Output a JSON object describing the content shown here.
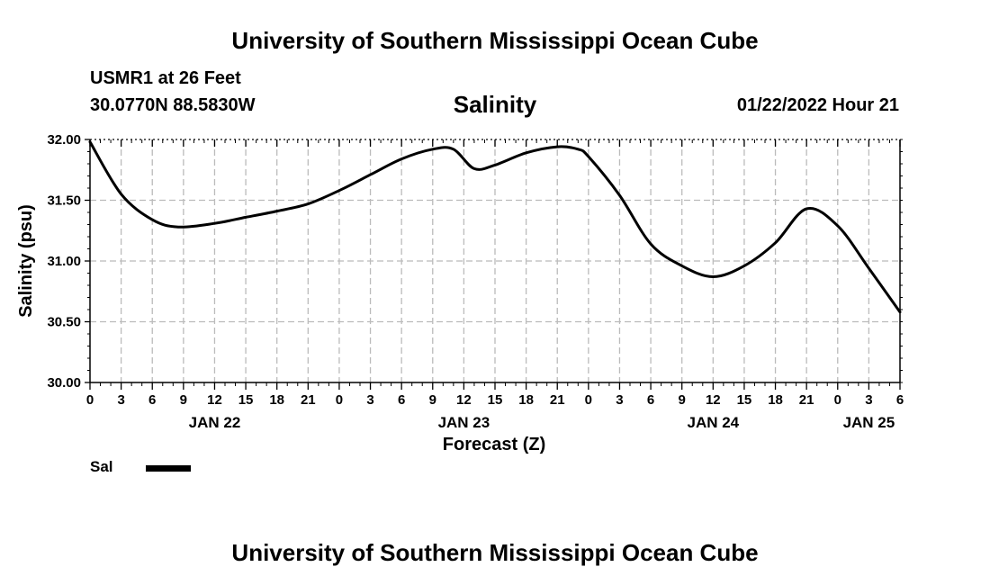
{
  "header": {
    "main_title": "University of Southern Mississippi Ocean Cube",
    "station": "USMR1 at 26 Feet",
    "coordinates": "30.0770N  88.5830W",
    "chart_title": "Salinity",
    "valid_time": "01/22/2022 Hour 21"
  },
  "footer": {
    "title": "University of Southern Mississippi Ocean Cube"
  },
  "legend": {
    "label": "Sal"
  },
  "colors": {
    "line": "#000000",
    "grid": "#bbbbbb",
    "background": "#ffffff"
  },
  "chart_data": {
    "type": "line",
    "title": "Salinity",
    "xlabel": "Forecast (Z)",
    "ylabel": "Salinity (psu)",
    "x_unit": "hours since 00Z Jan 22, 2022",
    "xlim": [
      0,
      78
    ],
    "ylim": [
      30.0,
      32.0
    ],
    "y_ticks": [
      30.0,
      30.5,
      31.0,
      31.5,
      32.0
    ],
    "y_tick_labels": [
      "30.00",
      "30.50",
      "31.00",
      "31.50",
      "32.00"
    ],
    "x_ticks": [
      0,
      3,
      6,
      9,
      12,
      15,
      18,
      21,
      24,
      27,
      30,
      33,
      36,
      39,
      42,
      45,
      48,
      51,
      54,
      57,
      60,
      63,
      66,
      69,
      72,
      75,
      78
    ],
    "x_tick_labels": [
      "0",
      "3",
      "6",
      "9",
      "12",
      "15",
      "18",
      "21",
      "0",
      "3",
      "6",
      "9",
      "12",
      "15",
      "18",
      "21",
      "0",
      "3",
      "6",
      "9",
      "12",
      "15",
      "18",
      "21",
      "0",
      "3",
      "6"
    ],
    "date_labels": [
      {
        "x": 12,
        "label": "JAN 22"
      },
      {
        "x": 36,
        "label": "JAN 23"
      },
      {
        "x": 60,
        "label": "JAN 24"
      },
      {
        "x": 75,
        "label": "JAN 25"
      }
    ],
    "grid": true,
    "legend_position": "bottom-left",
    "series": [
      {
        "name": "Sal",
        "x": [
          0,
          3,
          6,
          8.5,
          12,
          15,
          18,
          21,
          24,
          27,
          30,
          33,
          35,
          37,
          39,
          42,
          45,
          47,
          48,
          51,
          54,
          57,
          60,
          63,
          66,
          69,
          72,
          75,
          78
        ],
        "values": [
          31.98,
          31.55,
          31.34,
          31.28,
          31.31,
          31.36,
          31.41,
          31.47,
          31.58,
          31.71,
          31.84,
          31.92,
          31.92,
          31.76,
          31.79,
          31.89,
          31.94,
          31.92,
          31.86,
          31.54,
          31.14,
          30.96,
          30.87,
          30.96,
          31.15,
          31.43,
          31.29,
          30.94,
          30.58
        ]
      }
    ]
  }
}
